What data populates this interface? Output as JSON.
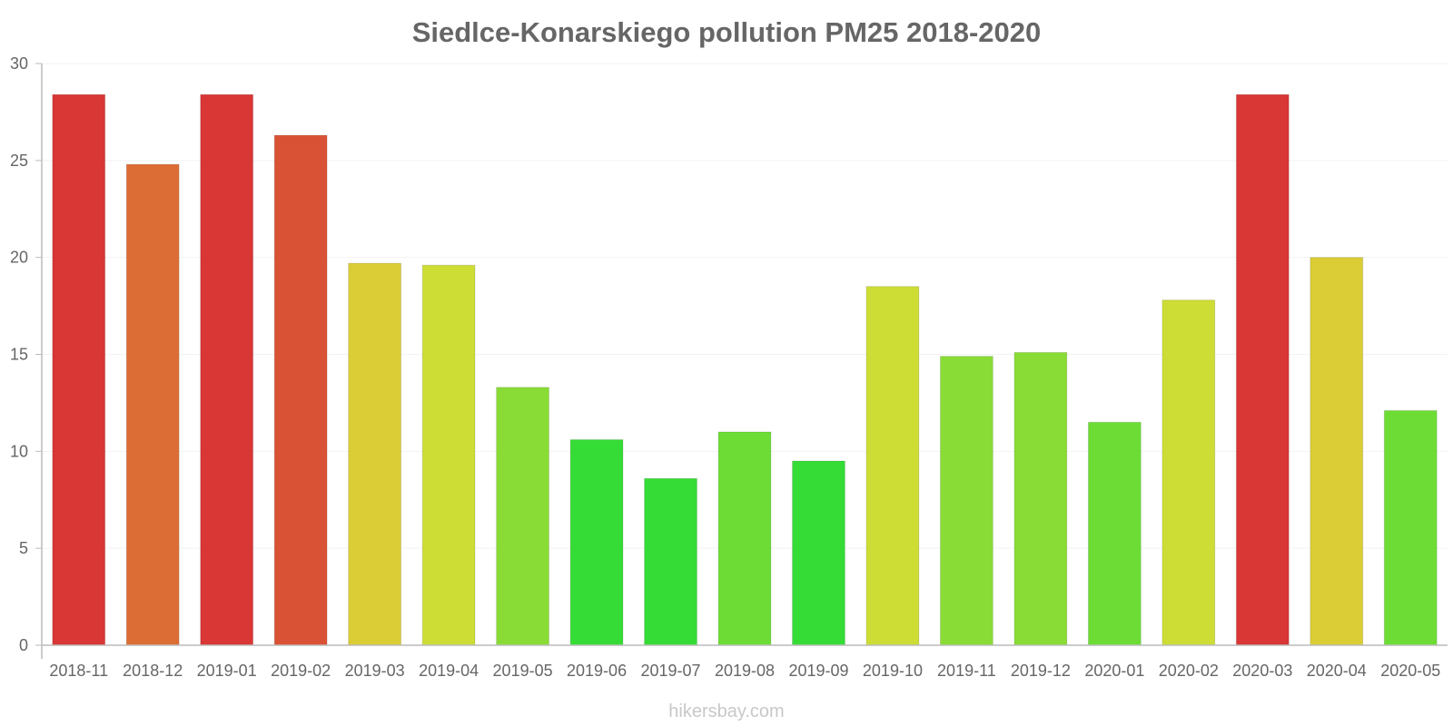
{
  "chart_data": {
    "type": "bar",
    "title": "Siedlce-Konarskiego pollution PM25 2018-2020",
    "xlabel": "",
    "ylabel": "",
    "ylim": [
      0,
      30
    ],
    "yticks": [
      0,
      5,
      10,
      15,
      20,
      25,
      30
    ],
    "grid": true,
    "legend": "none",
    "categories": [
      "2018-11",
      "2018-12",
      "2019-01",
      "2019-02",
      "2019-03",
      "2019-04",
      "2019-05",
      "2019-06",
      "2019-07",
      "2019-08",
      "2019-09",
      "2019-10",
      "2019-11",
      "2019-12",
      "2020-01",
      "2020-02",
      "2020-03",
      "2020-04",
      "2020-05"
    ],
    "values": [
      28.4,
      24.8,
      28.4,
      26.3,
      19.7,
      19.6,
      13.3,
      10.6,
      8.6,
      11.0,
      9.5,
      18.5,
      14.9,
      15.1,
      11.5,
      17.8,
      28.4,
      20.0,
      12.1
    ],
    "colors": [
      "#d93636",
      "#dc6e35",
      "#d93636",
      "#da5235",
      "#dacd36",
      "#cedd35",
      "#89dc35",
      "#36dc36",
      "#36dc36",
      "#6ddd35",
      "#36dc36",
      "#cedd35",
      "#89dc35",
      "#89dc35",
      "#6ddd35",
      "#cedd35",
      "#d93636",
      "#dacd36",
      "#6ddd35"
    ]
  },
  "footer": {
    "watermark": "hikersbay.com"
  }
}
